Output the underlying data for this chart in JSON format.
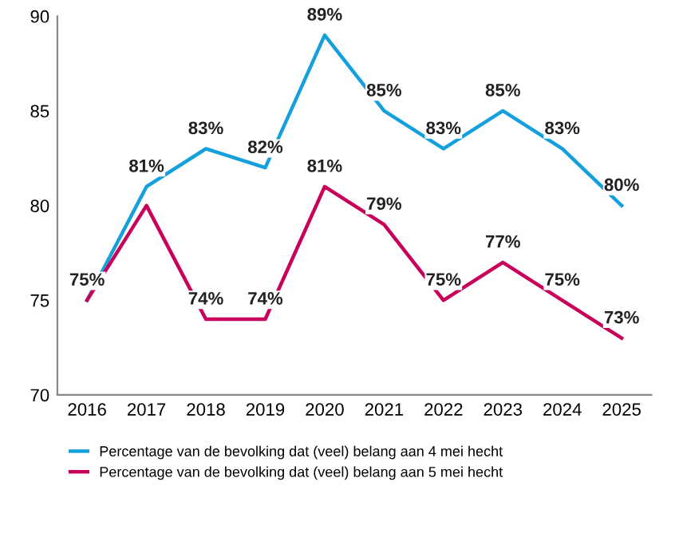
{
  "chart_data": {
    "type": "line",
    "categories": [
      "2016",
      "2017",
      "2018",
      "2019",
      "2020",
      "2021",
      "2022",
      "2023",
      "2024",
      "2025"
    ],
    "series": [
      {
        "name": "Percentage van de bevolking dat (veel) belang aan 4 mei hecht",
        "color": "#14a0dc",
        "values": [
          75,
          81,
          83,
          82,
          89,
          85,
          83,
          85,
          83,
          80
        ],
        "value_labels": [
          "75%",
          "81%",
          "83%",
          "82%",
          "89%",
          "85%",
          "83%",
          "85%",
          "83%",
          "80%"
        ]
      },
      {
        "name": "Percentage van de bevolking dat (veel) belang aan 5 mei hecht",
        "color": "#c8005a",
        "values": [
          75,
          80,
          74,
          74,
          81,
          79,
          75,
          77,
          75,
          73
        ],
        "value_labels": [
          null,
          null,
          "74%",
          "74%",
          "81%",
          "79%",
          "75%",
          "77%",
          "75%",
          "73%"
        ]
      }
    ],
    "ylim": [
      70,
      90
    ],
    "yticks": [
      70,
      75,
      80,
      85,
      90
    ],
    "grid": false,
    "legend": "bottom",
    "marker": "none",
    "line_style": "solid"
  }
}
